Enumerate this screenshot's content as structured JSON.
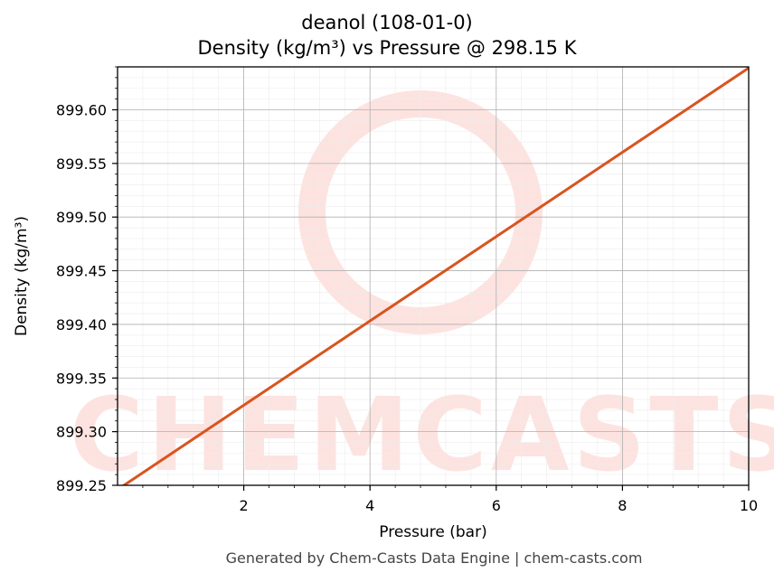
{
  "chart_data": {
    "type": "line",
    "title": "deanol (108-01-0)",
    "subtitle": "Density (kg/m³) vs Pressure @ 298.15 K",
    "xlabel": "Pressure (bar)",
    "ylabel": "Density (kg/m³)",
    "xlim": [
      0,
      10
    ],
    "ylim": [
      899.25,
      899.64
    ],
    "x_ticks": [
      2,
      4,
      6,
      8,
      10
    ],
    "x_tick_labels": [
      "2",
      "4",
      "6",
      "8",
      "10"
    ],
    "y_ticks": [
      899.25,
      899.3,
      899.35,
      899.4,
      899.45,
      899.5,
      899.55,
      899.6
    ],
    "y_tick_labels": [
      "899.25",
      "899.30",
      "899.35",
      "899.40",
      "899.45",
      "899.50",
      "899.55",
      "899.60"
    ],
    "grid": true,
    "series": [
      {
        "color": "#d9541e",
        "x": [
          0,
          10
        ],
        "y": [
          899.246,
          899.639
        ]
      }
    ]
  },
  "watermark": "CHEMCASTS",
  "footer": "Generated by Chem-Casts Data Engine | chem-casts.com"
}
